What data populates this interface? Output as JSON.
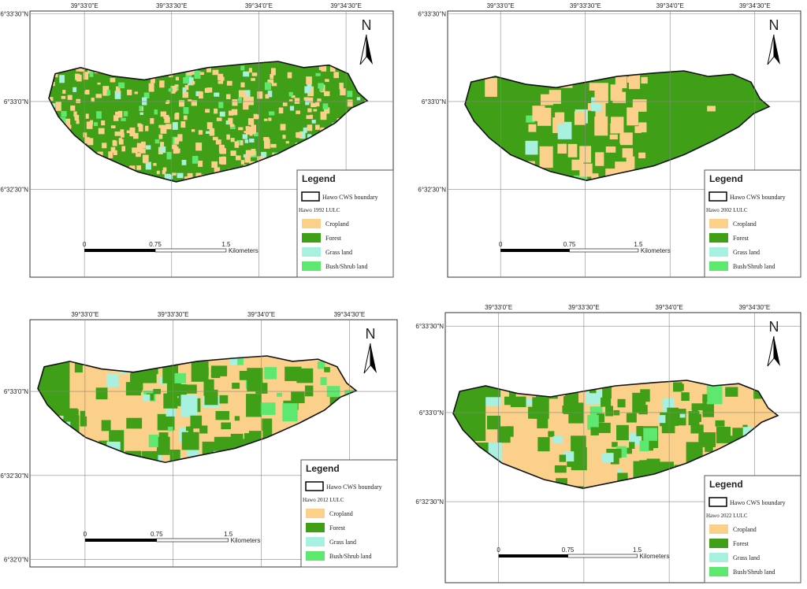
{
  "panels": [
    {
      "x_labels": [
        "39°33'0\"E",
        "39°33'30\"E",
        "39°34'0\"E",
        "39°34'30\"E"
      ],
      "y_labels": [
        "6°33'30\"N",
        "6°33'0\"N",
        "6°32'30\"N"
      ],
      "north": "N",
      "legend": {
        "title": "Legend",
        "boundary": "Hawo CWS boundary",
        "subtitle": "Hawo 1992 LULC",
        "classes": [
          "Cropland",
          "Forest",
          "Grass land",
          "Bush/Shrub land"
        ]
      },
      "scale": {
        "ticks": [
          "0",
          "0.75",
          "1.5"
        ],
        "unit": "Kilometers"
      }
    },
    {
      "x_labels": [
        "39°33'0\"E",
        "39°33'30\"E",
        "39°34'0\"E",
        "39°34'30\"E"
      ],
      "y_labels": [
        "6°33'30\"N",
        "6°33'0\"N",
        "6°32'30\"N"
      ],
      "north": "N",
      "legend": {
        "title": "Legend",
        "boundary": "Hawo CWS boundary",
        "subtitle": "Hawo 2002 LULC",
        "classes": [
          "Cropland",
          "Forest",
          "Grass land",
          "Bush/Shrub land"
        ]
      },
      "scale": {
        "ticks": [
          "0",
          "0.75",
          "1.5"
        ],
        "unit": "Kilometers"
      }
    },
    {
      "x_labels": [
        "39°33'0\"E",
        "39°33'30\"E",
        "39°34'0\"E",
        "39°34'30\"E"
      ],
      "y_labels": [
        "6°33'0\"N",
        "6°32'30\"N",
        "6°32'0\"N"
      ],
      "north": "N",
      "legend": {
        "title": "Legend",
        "boundary": "Hawo CWS boundary",
        "subtitle": "Hawo 2012 LULC",
        "classes": [
          "Cropland",
          "Forest",
          "Grass land",
          "Bush/Shrub land"
        ]
      },
      "scale": {
        "ticks": [
          "0",
          "0.75",
          "1.5"
        ],
        "unit": "Kilometers"
      }
    },
    {
      "x_labels": [
        "39°33'0\"E",
        "39°33'30\"E",
        "39°34'0\"E",
        "39°34'30\"E"
      ],
      "y_labels": [
        "6°33'30\"N",
        "6°33'0\"N",
        "6°32'30\"N"
      ],
      "north": "N",
      "legend": {
        "title": "Legend",
        "boundary": "Hawo CWS boundary",
        "subtitle": "Hawo 2022 LULC",
        "classes": [
          "Cropland",
          "Forest",
          "Grass land",
          "Bush/Shrub land"
        ]
      },
      "scale": {
        "ticks": [
          "0",
          "0.75",
          "1.5"
        ],
        "unit": "Kilometers"
      }
    }
  ]
}
